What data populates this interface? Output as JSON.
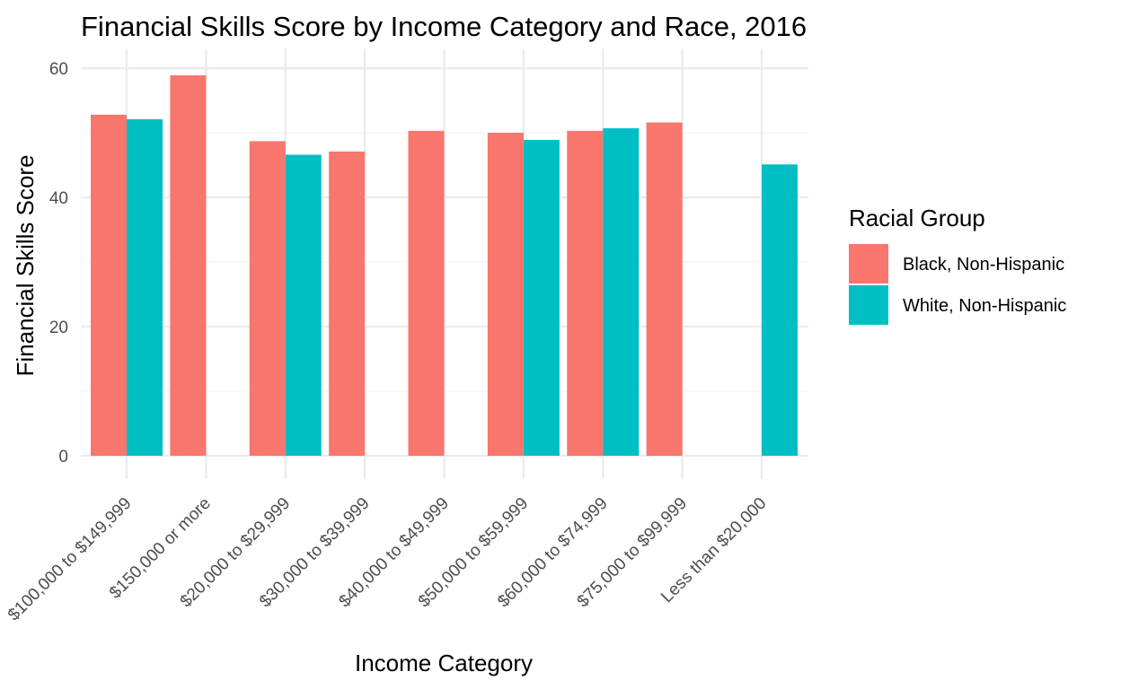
{
  "chart_data": {
    "type": "bar",
    "title": "Financial Skills Score by Income Category and Race, 2016",
    "xlabel": "Income Category",
    "ylabel": "Financial Skills Score",
    "categories": [
      "$100,000 to $149,999",
      "$150,000 or more",
      "$20,000 to $29,999",
      "$30,000 to $39,999",
      "$40,000 to $49,999",
      "$50,000 to $59,999",
      "$60,000 to $74,999",
      "$75,000 to $99,999",
      "Less than $20,000"
    ],
    "series": [
      {
        "name": "Black, Non-Hispanic",
        "color": "#F8766D",
        "values": [
          52.8,
          58.9,
          48.7,
          47.1,
          50.3,
          50.0,
          50.3,
          51.6,
          null
        ]
      },
      {
        "name": "White, Non-Hispanic",
        "color": "#00BFC4",
        "values": [
          52.1,
          null,
          46.6,
          null,
          null,
          48.9,
          50.7,
          null,
          45.1
        ]
      }
    ],
    "ylim": [
      0,
      63
    ],
    "yticks": [
      0,
      20,
      40,
      60
    ],
    "grid": true,
    "legend": {
      "title": "Racial Group",
      "position": "right"
    }
  }
}
